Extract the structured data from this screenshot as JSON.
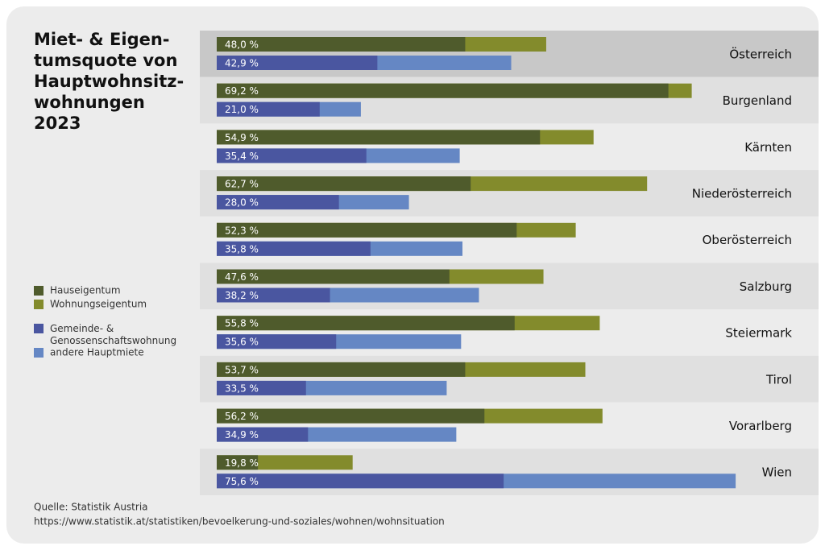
{
  "chart_data": {
    "type": "bar",
    "title_lines": [
      "Miet- & Eigen-",
      "tumsquote von",
      "Hauptwohnsitz-",
      "wohnungen",
      "2023"
    ],
    "categories": [
      "Österreich",
      "Burgenland",
      "Kärnten",
      "Niederösterreich",
      "Oberösterreich",
      "Salzburg",
      "Steiermark",
      "Tirol",
      "Vorarlberg",
      "Wien"
    ],
    "ownership": {
      "totals": [
        48.0,
        69.2,
        54.9,
        62.7,
        52.3,
        47.6,
        55.8,
        53.7,
        56.2,
        19.8
      ],
      "value_labels": [
        "48,0 %",
        "69,2 %",
        "54,9 %",
        "62,7 %",
        "52,3 %",
        "47,6 %",
        "55,8 %",
        "53,7 %",
        "56,2 %",
        "19,8 %"
      ],
      "series": [
        {
          "name": "Hauseigentum",
          "color": "#4f5b2c",
          "values": [
            36.2,
            65.8,
            47.1,
            37.0,
            43.7,
            33.9,
            43.4,
            36.2,
            39.0,
            6.0
          ]
        },
        {
          "name": "Wohnungseigentum",
          "color": "#838b2c"
        }
      ]
    },
    "rent": {
      "totals": [
        42.9,
        21.0,
        35.4,
        28.0,
        35.8,
        38.2,
        35.6,
        33.5,
        34.9,
        75.6
      ],
      "value_labels": [
        "42,9 %",
        "21,0 %",
        "35,4 %",
        "28,0 %",
        "35,8 %",
        "38,2 %",
        "35,6 %",
        "33,5 %",
        "34,9 %",
        "75,6 %"
      ],
      "series": [
        {
          "name": "Gemeinde- & Genossenschaftswohnung",
          "color": "#4a56a0",
          "values": [
            23.4,
            15.0,
            21.8,
            17.8,
            22.4,
            16.5,
            17.4,
            13.0,
            13.3,
            41.8
          ]
        },
        {
          "name": "andere Hauptmiete",
          "color": "#6587c4"
        }
      ]
    },
    "source_lines": [
      "Quelle: Statistik Austria",
      "https://www.statistik.at/statistiken/bevoelkerung-und-soziales/wohnen/wohnsituation"
    ]
  }
}
